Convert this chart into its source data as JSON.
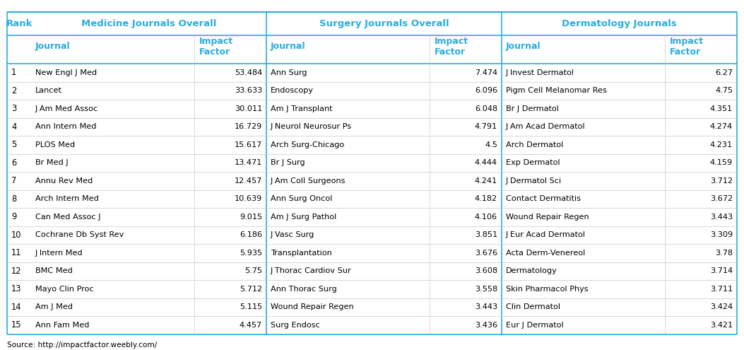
{
  "title_medicine": "Medicine Journals Overall",
  "title_surgery": "Surgery Journals Overall",
  "title_derma": "Dermatology Journals",
  "col_rank": "Rank",
  "col_journal": "Journal",
  "col_impact": "Impact\nFactor",
  "ranks": [
    "1",
    "2",
    "3",
    "4",
    "5",
    "6",
    "7",
    "8",
    "9",
    "10",
    "11",
    "12",
    "13",
    "14",
    "15"
  ],
  "medicine_journals": [
    "New Engl J Med",
    "Lancet",
    "J Am Med Assoc",
    "Ann Intern Med",
    "PLOS Med",
    "Br Med J",
    "Annu Rev Med",
    "Arch Intern Med",
    "Can Med Assoc J",
    "Cochrane Db Syst Rev",
    "J Intern Med",
    "BMC Med",
    "Mayo Clin Proc",
    "Am J Med",
    "Ann Fam Med"
  ],
  "medicine_if": [
    "53.484",
    "33.633",
    "30.011",
    "16.729",
    "15.617",
    "13.471",
    "12.457",
    "10.639",
    "9.015",
    "6.186",
    "5.935",
    "5.75",
    "5.712",
    "5.115",
    "4.457"
  ],
  "surgery_journals": [
    "Ann Surg",
    "Endoscopy",
    "Am J Transplant",
    "J Neurol Neurosur Ps",
    "Arch Surg-Chicago",
    "Br J Surg",
    "J Am Coll Surgeons",
    "Ann Surg Oncol",
    "Am J Surg Pathol",
    "J Vasc Surg",
    "Transplantation",
    "J Thorac Cardiov Sur",
    "Ann Thorac Surg",
    "Wound Repair Regen",
    "Surg Endosc"
  ],
  "surgery_if": [
    "7.474",
    "6.096",
    "6.048",
    "4.791",
    "4.5",
    "4.444",
    "4.241",
    "4.182",
    "4.106",
    "3.851",
    "3.676",
    "3.608",
    "3.558",
    "3.443",
    "3.436"
  ],
  "derma_journals": [
    "J Invest Dermatol",
    "Pigm Cell Melanomar Res",
    "Br J Dermatol",
    "J Am Acad Dermatol",
    "Arch Dermatol",
    "Exp Dermatol",
    "J Dermatol Sci",
    "Contact Dermatitis",
    "Wound Repair Regen",
    "J Eur Acad Dermatol",
    "Acta Derm-Venereol",
    "Dermatology",
    "Skin Pharmacol Phys",
    "Clin Dermatol",
    "Eur J Dermatol"
  ],
  "derma_if": [
    "6.27",
    "4.75",
    "4.351",
    "4.274",
    "4.231",
    "4.159",
    "3.712",
    "3.672",
    "3.443",
    "3.309",
    "3.78",
    "3.714",
    "3.711",
    "3.424",
    "3.421"
  ],
  "header_color": "#2AACE2",
  "bg_color": "#FFFFFF",
  "border_color": "#2AACE2",
  "source_text": "Source: http://impactfactor.weebly.com/",
  "fig_width": 10.53,
  "fig_height": 4.95,
  "dpi": 100
}
